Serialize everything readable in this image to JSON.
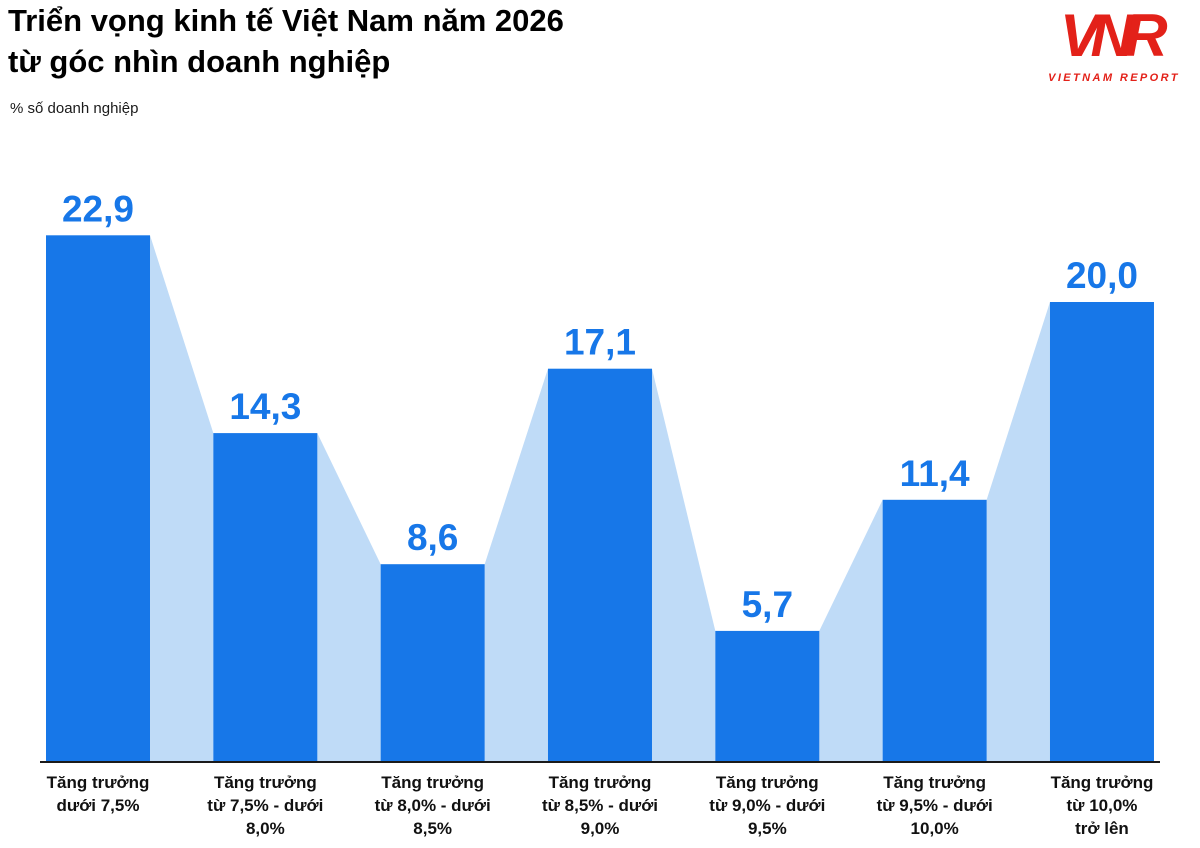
{
  "header": {
    "title_line1": "Triển vọng kinh tế Việt Nam năm 2026",
    "title_line2": "từ góc nhìn doanh nghiệp",
    "subtitle": "% số doanh nghiệp"
  },
  "logo": {
    "monogram": "VNR",
    "caption": "VIETNAM REPORT",
    "color": "#e32119"
  },
  "chart_data": {
    "type": "bar",
    "title": "Triển vọng kinh tế Việt Nam năm 2026 từ góc nhìn doanh nghiệp",
    "ylabel": "% số doanh nghiệp",
    "xlabel": "",
    "categories": [
      "Tăng trưởng dưới 7,5%",
      "Tăng trưởng từ 7,5% - dưới 8,0%",
      "Tăng trưởng từ 8,0% - dưới 8,5%",
      "Tăng trưởng từ 8,5% - dưới 9,0%",
      "Tăng trưởng từ 9,0% - dưới 9,5%",
      "Tăng trưởng từ 9,5% - dưới 10,0%",
      "Tăng trưởng từ 10,0% trở lên"
    ],
    "category_lines": [
      [
        "Tăng trưởng",
        "dưới 7,5%"
      ],
      [
        "Tăng trưởng",
        "từ 7,5% - dưới",
        "8,0%"
      ],
      [
        "Tăng trưởng",
        "từ 8,0% - dưới",
        "8,5%"
      ],
      [
        "Tăng trưởng",
        "từ 8,5% - dưới",
        "9,0%"
      ],
      [
        "Tăng trưởng",
        "từ 9,0% - dưới",
        "9,5%"
      ],
      [
        "Tăng trưởng",
        "từ 9,5% - dưới",
        "10,0%"
      ],
      [
        "Tăng trưởng",
        "từ 10,0%",
        "trở lên"
      ]
    ],
    "values": [
      22.9,
      14.3,
      8.6,
      17.1,
      5.7,
      11.4,
      20.0
    ],
    "value_labels": [
      "22,9",
      "14,3",
      "8,6",
      "17,1",
      "5,7",
      "11,4",
      "20,0"
    ],
    "ylim": [
      0,
      24
    ],
    "grid": false,
    "legend": false,
    "colors": {
      "bar": "#1777e8",
      "bridge": "#bfdbf7",
      "value_label": "#1777e8",
      "axis": "#1a1a1a"
    }
  }
}
